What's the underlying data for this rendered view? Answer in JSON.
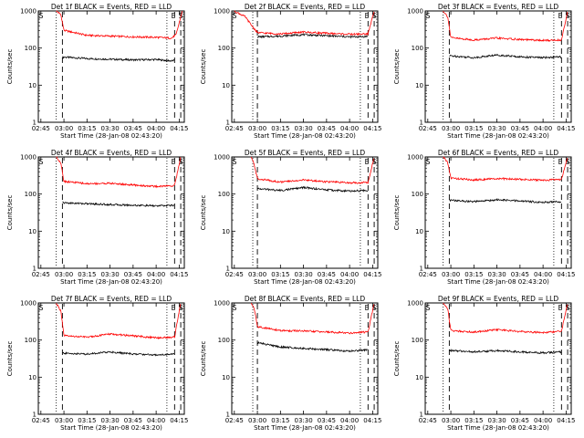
{
  "colors": {
    "events": "#000000",
    "lld": "#ff0000",
    "background": "#ffffff"
  },
  "chart_data": [
    {
      "type": "line",
      "title": "Det 1f BLACK = Events, RED = LLD",
      "xlabel": "Start Time (28-Jan-08 02:43:20)",
      "ylabel": "Counts/sec",
      "y_scale": "log",
      "ylim": [
        1,
        1000
      ],
      "yticks": [
        "1",
        "10",
        "100",
        "1000"
      ],
      "xticks": [
        "02:45",
        "03:00",
        "03:15",
        "03:30",
        "03:45",
        "04:00",
        "04:15"
      ],
      "markers": [
        "S",
        "E",
        "S"
      ],
      "series": [
        {
          "name": "Events",
          "color": "#000000",
          "x": [
            "02:59",
            "03:00",
            "03:15",
            "03:30",
            "03:45",
            "04:00",
            "04:10",
            "04:12"
          ],
          "values": [
            55,
            57,
            52,
            50,
            48,
            49,
            45,
            47
          ]
        },
        {
          "name": "LLD",
          "color": "#ff0000",
          "x": [
            "02:55",
            "02:58",
            "03:00",
            "03:15",
            "03:30",
            "03:45",
            "04:00",
            "04:10",
            "04:13",
            "04:17"
          ],
          "values": [
            1000,
            800,
            300,
            220,
            210,
            200,
            195,
            185,
            230,
            1000
          ]
        }
      ]
    },
    {
      "type": "line",
      "title": "Det 2f BLACK = Events, RED = LLD",
      "xlabel": "Start Time (28-Jan-08 02:43:20)",
      "ylabel": "Counts/sec",
      "y_scale": "log",
      "ylim": [
        1,
        1000
      ],
      "yticks": [
        "1",
        "10",
        "100",
        "1000"
      ],
      "xticks": [
        "02:45",
        "03:00",
        "03:15",
        "03:30",
        "03:45",
        "04:00",
        "04:15"
      ],
      "markers": [
        "S",
        "E",
        "S"
      ],
      "series": [
        {
          "name": "Events",
          "color": "#000000",
          "x": [
            "03:00",
            "03:15",
            "03:30",
            "03:45",
            "04:00",
            "04:12"
          ],
          "values": [
            200,
            210,
            230,
            215,
            200,
            205
          ]
        },
        {
          "name": "LLD",
          "color": "#ff0000",
          "x": [
            "02:45",
            "02:52",
            "02:56",
            "03:00",
            "03:15",
            "03:30",
            "03:45",
            "04:00",
            "04:12",
            "04:16"
          ],
          "values": [
            1000,
            700,
            420,
            260,
            240,
            270,
            250,
            235,
            240,
            1000
          ]
        }
      ]
    },
    {
      "type": "line",
      "title": "Det 3f BLACK = Events, RED = LLD",
      "xlabel": "Start Time (28-Jan-08 02:43:20)",
      "ylabel": "Counts/sec",
      "y_scale": "log",
      "ylim": [
        1,
        1000
      ],
      "yticks": [
        "1",
        "10",
        "100",
        "1000"
      ],
      "xticks": [
        "02:45",
        "03:00",
        "03:15",
        "03:30",
        "03:45",
        "04:00",
        "04:15"
      ],
      "markers": [
        "S",
        "E",
        "S"
      ],
      "series": [
        {
          "name": "Events",
          "color": "#000000",
          "x": [
            "02:59",
            "03:00",
            "03:15",
            "03:30",
            "03:45",
            "04:00",
            "04:12"
          ],
          "values": [
            60,
            62,
            55,
            65,
            58,
            55,
            58
          ]
        },
        {
          "name": "LLD",
          "color": "#ff0000",
          "x": [
            "02:55",
            "02:58",
            "03:00",
            "03:15",
            "03:30",
            "03:45",
            "04:00",
            "04:12",
            "04:16"
          ],
          "values": [
            1000,
            700,
            190,
            165,
            185,
            170,
            160,
            165,
            1000
          ]
        }
      ]
    },
    {
      "type": "line",
      "title": "Det 4f BLACK = Events, RED = LLD",
      "xlabel": "Start Time (28-Jan-08 02:43:20)",
      "ylabel": "Counts/sec",
      "y_scale": "log",
      "ylim": [
        1,
        1000
      ],
      "yticks": [
        "1",
        "10",
        "100",
        "1000"
      ],
      "xticks": [
        "02:45",
        "03:00",
        "03:15",
        "03:30",
        "03:45",
        "04:00",
        "04:15"
      ],
      "markers": [
        "S",
        "E",
        "S"
      ],
      "series": [
        {
          "name": "Events",
          "color": "#000000",
          "x": [
            "02:59",
            "03:00",
            "03:15",
            "03:30",
            "03:45",
            "04:00",
            "04:12"
          ],
          "values": [
            60,
            58,
            55,
            52,
            50,
            48,
            50
          ]
        },
        {
          "name": "LLD",
          "color": "#ff0000",
          "x": [
            "02:55",
            "02:58",
            "03:00",
            "03:15",
            "03:30",
            "03:45",
            "04:00",
            "04:12",
            "04:16"
          ],
          "values": [
            1000,
            700,
            220,
            190,
            195,
            175,
            160,
            170,
            1000
          ]
        }
      ]
    },
    {
      "type": "line",
      "title": "Det 5f BLACK = Events, RED = LLD",
      "xlabel": "Start Time (28-Jan-08 02:43:20)",
      "ylabel": "Counts/sec",
      "y_scale": "log",
      "ylim": [
        1,
        1000
      ],
      "yticks": [
        "1",
        "10",
        "100",
        "1000"
      ],
      "xticks": [
        "02:45",
        "03:00",
        "03:15",
        "03:30",
        "03:45",
        "04:00",
        "04:15"
      ],
      "markers": [
        "S",
        "E",
        "S"
      ],
      "series": [
        {
          "name": "Events",
          "color": "#000000",
          "x": [
            "03:00",
            "03:15",
            "03:30",
            "03:45",
            "04:00",
            "04:12"
          ],
          "values": [
            140,
            125,
            150,
            130,
            120,
            125
          ]
        },
        {
          "name": "LLD",
          "color": "#ff0000",
          "x": [
            "02:56",
            "02:58",
            "03:00",
            "03:15",
            "03:30",
            "03:45",
            "04:00",
            "04:12",
            "04:16"
          ],
          "values": [
            1000,
            600,
            260,
            210,
            240,
            215,
            200,
            205,
            1000
          ]
        }
      ]
    },
    {
      "type": "line",
      "title": "Det 6f BLACK = Events, RED = LLD",
      "xlabel": "Start Time (28-Jan-08 02:43:20)",
      "ylabel": "Counts/sec",
      "y_scale": "log",
      "ylim": [
        1,
        1000
      ],
      "yticks": [
        "1",
        "10",
        "100",
        "1000"
      ],
      "xticks": [
        "02:45",
        "03:00",
        "03:15",
        "03:30",
        "03:45",
        "04:00",
        "04:15"
      ],
      "markers": [
        "S",
        "E",
        "S"
      ],
      "series": [
        {
          "name": "Events",
          "color": "#000000",
          "x": [
            "02:59",
            "03:00",
            "03:15",
            "03:30",
            "03:45",
            "04:00",
            "04:12"
          ],
          "values": [
            70,
            68,
            62,
            70,
            65,
            60,
            62
          ]
        },
        {
          "name": "LLD",
          "color": "#ff0000",
          "x": [
            "02:55",
            "02:58",
            "03:00",
            "03:15",
            "03:30",
            "03:45",
            "04:00",
            "04:12",
            "04:16"
          ],
          "values": [
            1000,
            700,
            270,
            240,
            260,
            250,
            235,
            250,
            1000
          ]
        }
      ]
    },
    {
      "type": "line",
      "title": "Det 7f BLACK = Events, RED = LLD",
      "xlabel": "Start Time (28-Jan-08 02:43:20)",
      "ylabel": "Counts/sec",
      "y_scale": "log",
      "ylim": [
        1,
        1000
      ],
      "yticks": [
        "1",
        "10",
        "100",
        "1000"
      ],
      "xticks": [
        "02:45",
        "03:00",
        "03:15",
        "03:30",
        "03:45",
        "04:00",
        "04:15"
      ],
      "markers": [
        "S",
        "E",
        "S"
      ],
      "series": [
        {
          "name": "Events",
          "color": "#000000",
          "x": [
            "02:59",
            "03:00",
            "03:15",
            "03:30",
            "03:45",
            "04:00",
            "04:12"
          ],
          "values": [
            45,
            44,
            42,
            48,
            42,
            40,
            42
          ]
        },
        {
          "name": "LLD",
          "color": "#ff0000",
          "x": [
            "02:55",
            "02:58",
            "03:00",
            "03:15",
            "03:30",
            "03:45",
            "04:00",
            "04:12",
            "04:16"
          ],
          "values": [
            1000,
            600,
            130,
            120,
            145,
            130,
            115,
            120,
            1000
          ]
        }
      ]
    },
    {
      "type": "line",
      "title": "Det 8f BLACK = Events, RED = LLD",
      "xlabel": "Start Time (28-Jan-08 02:43:20)",
      "ylabel": "Counts/sec",
      "y_scale": "log",
      "ylim": [
        1,
        1000
      ],
      "yticks": [
        "1",
        "10",
        "100",
        "1000"
      ],
      "xticks": [
        "02:45",
        "03:00",
        "03:15",
        "03:30",
        "03:45",
        "04:00",
        "04:15"
      ],
      "markers": [
        "S",
        "E",
        "S"
      ],
      "series": [
        {
          "name": "Events",
          "color": "#000000",
          "x": [
            "03:00",
            "03:15",
            "03:30",
            "03:45",
            "04:00",
            "04:12"
          ],
          "values": [
            85,
            65,
            60,
            55,
            50,
            55
          ]
        },
        {
          "name": "LLD",
          "color": "#ff0000",
          "x": [
            "02:56",
            "02:58",
            "03:00",
            "03:15",
            "03:30",
            "03:45",
            "04:00",
            "04:12",
            "04:16"
          ],
          "values": [
            1000,
            700,
            230,
            180,
            175,
            165,
            155,
            165,
            1000
          ]
        }
      ]
    },
    {
      "type": "line",
      "title": "Det 9f BLACK = Events, RED = LLD",
      "xlabel": "Start Time (28-Jan-08 02:43:20)",
      "ylabel": "Counts/sec",
      "y_scale": "log",
      "ylim": [
        1,
        1000
      ],
      "yticks": [
        "1",
        "10",
        "100",
        "1000"
      ],
      "xticks": [
        "02:45",
        "03:00",
        "03:15",
        "03:30",
        "03:45",
        "04:00",
        "04:15"
      ],
      "markers": [
        "S",
        "E",
        "S"
      ],
      "series": [
        {
          "name": "Events",
          "color": "#000000",
          "x": [
            "02:59",
            "03:00",
            "03:15",
            "03:30",
            "03:45",
            "04:00",
            "04:12"
          ],
          "values": [
            55,
            52,
            48,
            52,
            48,
            45,
            48
          ]
        },
        {
          "name": "LLD",
          "color": "#ff0000",
          "x": [
            "02:55",
            "02:58",
            "03:00",
            "03:15",
            "03:30",
            "03:45",
            "04:00",
            "04:12",
            "04:16"
          ],
          "values": [
            1000,
            700,
            180,
            165,
            190,
            170,
            160,
            170,
            1000
          ]
        }
      ]
    }
  ]
}
